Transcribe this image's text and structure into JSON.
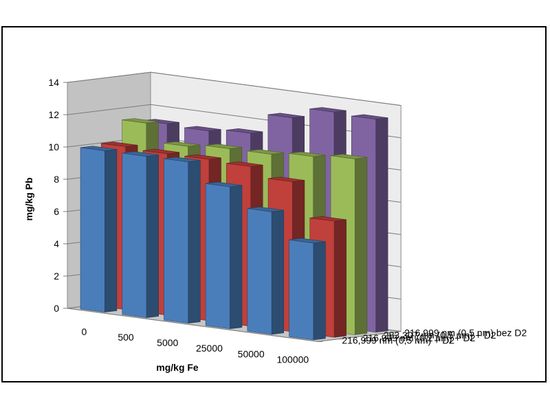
{
  "chart_data": {
    "type": "bar",
    "subtype": "3d-grouped",
    "title": "",
    "xlabel": "mg/kg Fe",
    "ylabel": "mg/kg Pb",
    "ylim": [
      0,
      14
    ],
    "yticks": [
      "0",
      "2",
      "4",
      "6",
      "8",
      "10",
      "12",
      "14"
    ],
    "categories": [
      "0",
      "500",
      "5000",
      "25000",
      "50000",
      "100000"
    ],
    "grid": true,
    "series": [
      {
        "name": "216,999 nm (0,5 nm) + D2",
        "color": "#4a7ebb",
        "values": [
          10.0,
          10.0,
          10.0,
          8.8,
          7.6,
          6.0
        ]
      },
      {
        "name": "216,999 nm (0,2 nm) + D2",
        "color": "#c0403c",
        "values": [
          10.1,
          10.0,
          10.0,
          9.9,
          9.3,
          7.2
        ]
      },
      {
        "name": "283,307 nm (0,5 nm) + D2",
        "color": "#9bbb59",
        "values": [
          11.4,
          10.3,
          10.5,
          10.5,
          10.7,
          10.9
        ]
      },
      {
        "name": "216,999 nm (0,5 nm) bez D2",
        "color": "#8064a2",
        "values": [
          11.2,
          11.1,
          11.3,
          12.6,
          13.3,
          13.2
        ]
      }
    ]
  }
}
